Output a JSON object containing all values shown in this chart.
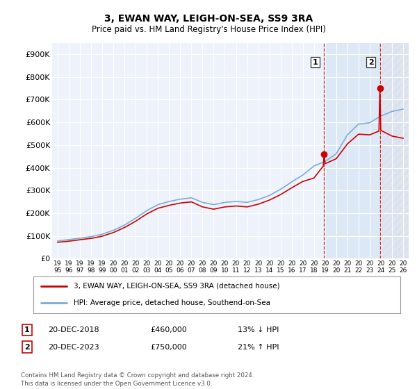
{
  "title": "3, EWAN WAY, LEIGH-ON-SEA, SS9 3RA",
  "subtitle": "Price paid vs. HM Land Registry's House Price Index (HPI)",
  "ylabel_ticks": [
    "£0",
    "£100K",
    "£200K",
    "£300K",
    "£400K",
    "£500K",
    "£600K",
    "£700K",
    "£800K",
    "£900K"
  ],
  "ytick_values": [
    0,
    100000,
    200000,
    300000,
    400000,
    500000,
    600000,
    700000,
    800000,
    900000
  ],
  "ylim": [
    0,
    950000
  ],
  "background_color": "#ffffff",
  "plot_bg_color": "#eef2fa",
  "grid_color": "#ffffff",
  "hpi_color": "#7aadd4",
  "price_color": "#cc0000",
  "shade_color": "#dce8f5",
  "hatch_color": "#d0d8e8",
  "legend_label1": "3, EWAN WAY, LEIGH-ON-SEA, SS9 3RA (detached house)",
  "legend_label2": "HPI: Average price, detached house, Southend-on-Sea",
  "annotation1": [
    "1",
    "20-DEC-2018",
    "£460,000",
    "13% ↓ HPI"
  ],
  "annotation2": [
    "2",
    "20-DEC-2023",
    "£750,000",
    "21% ↑ HPI"
  ],
  "footer": "Contains HM Land Registry data © Crown copyright and database right 2024.\nThis data is licensed under the Open Government Licence v3.0.",
  "xtick_years": [
    "1995",
    "1996",
    "1997",
    "1998",
    "1999",
    "2000",
    "2001",
    "2002",
    "2003",
    "2004",
    "2005",
    "2006",
    "2007",
    "2008",
    "2009",
    "2010",
    "2011",
    "2012",
    "2013",
    "2014",
    "2015",
    "2016",
    "2017",
    "2018",
    "2019",
    "2020",
    "2021",
    "2022",
    "2023",
    "2024",
    "2025",
    "2026"
  ],
  "marker1_year": 2018.96,
  "marker2_year": 2023.96,
  "marker1_price": 460000,
  "marker2_price": 750000
}
